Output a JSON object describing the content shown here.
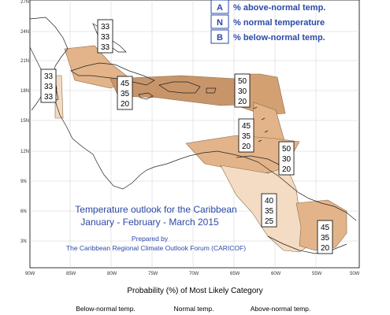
{
  "map": {
    "latitudes": [
      "27N",
      "24N",
      "21N",
      "18N",
      "15N",
      "12N",
      "9N",
      "6N",
      "3N"
    ],
    "longitudes": [
      "90W",
      "85W",
      "80W",
      "75W",
      "70W",
      "65W",
      "60W",
      "55W",
      "50W"
    ]
  },
  "legend_key": [
    {
      "letter": "A",
      "text": "% above-normal temp."
    },
    {
      "letter": "N",
      "text": "% normal temperature"
    },
    {
      "letter": "B",
      "text": "% below-normal temp."
    }
  ],
  "title": {
    "line1": "Temperature outlook for the Caribbean",
    "line2": "January - February - March 2015",
    "prepared_by": "Prepared by",
    "forum": "The Caribbean Regional Climate Outlook Forum (CARICOF)"
  },
  "boxes": [
    {
      "id": "cuba",
      "values": [
        "33",
        "33",
        "33"
      ]
    },
    {
      "id": "belize",
      "values": [
        "33",
        "33",
        "33"
      ]
    },
    {
      "id": "greater-antilles",
      "values": [
        "45",
        "35",
        "20"
      ]
    },
    {
      "id": "northern-leeward",
      "values": [
        "50",
        "30",
        "20"
      ]
    },
    {
      "id": "windward",
      "values": [
        "45",
        "35",
        "20"
      ]
    },
    {
      "id": "southern-caribbean",
      "values": [
        "50",
        "30",
        "20"
      ]
    },
    {
      "id": "guyana",
      "values": [
        "40",
        "35",
        "25"
      ]
    },
    {
      "id": "guianas",
      "values": [
        "45",
        "35",
        "20"
      ]
    }
  ],
  "probability_title": "Probability (%) of Most Likely Category",
  "categories": [
    "Below-normal temp.",
    "Normal temp.",
    "Above-normal temp."
  ],
  "colors": {
    "light": "#f3dcc3",
    "medium": "#e3b489",
    "dark": "#c8956a",
    "key": "#2b4aa8"
  }
}
